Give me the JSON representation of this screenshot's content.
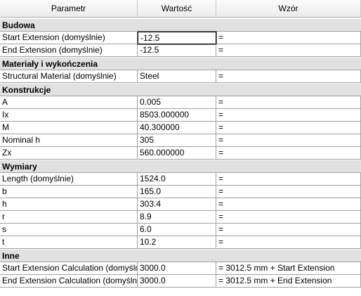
{
  "headers": {
    "parameter": "Parametr",
    "value": "Wartość",
    "formula": "Wzór"
  },
  "groups": [
    {
      "title": "Budowa",
      "rows": [
        {
          "param": "Start Extension (domyślnie)",
          "value": "-12.5",
          "formula": "="
        },
        {
          "param": "End Extension (domyślnie)",
          "value": "-12.5",
          "formula": "="
        }
      ]
    },
    {
      "title": "Materiały i wykończenia",
      "rows": [
        {
          "param": "Structural Material (domyślnie)",
          "value": "Steel",
          "formula": "="
        }
      ]
    },
    {
      "title": "Konstrukcje",
      "rows": [
        {
          "param": "A",
          "value": "0.005",
          "formula": "="
        },
        {
          "param": "Ix",
          "value": "8503.000000",
          "formula": "="
        },
        {
          "param": "M",
          "value": "40.300000",
          "formula": "="
        },
        {
          "param": "Nominal h",
          "value": "305",
          "formula": "="
        },
        {
          "param": "Zx",
          "value": "560.000000",
          "formula": "="
        }
      ]
    },
    {
      "title": "Wymiary",
      "rows": [
        {
          "param": "Length (domyślnie)",
          "value": "1524.0",
          "formula": "="
        },
        {
          "param": "b",
          "value": "165.0",
          "formula": "="
        },
        {
          "param": "h",
          "value": "303.4",
          "formula": "="
        },
        {
          "param": "r",
          "value": "8.9",
          "formula": "="
        },
        {
          "param": "s",
          "value": "6.0",
          "formula": "="
        },
        {
          "param": "t",
          "value": "10.2",
          "formula": "="
        }
      ]
    },
    {
      "title": "Inne",
      "rows": [
        {
          "param": "Start Extension Calculation (domyślnie)",
          "value": "3000.0",
          "formula": "= 3012.5 mm + Start Extension"
        },
        {
          "param": "End Extension Calculation (domyślnie)",
          "value": "3000.0",
          "formula": "= 3012.5 mm + End Extension"
        }
      ]
    }
  ]
}
